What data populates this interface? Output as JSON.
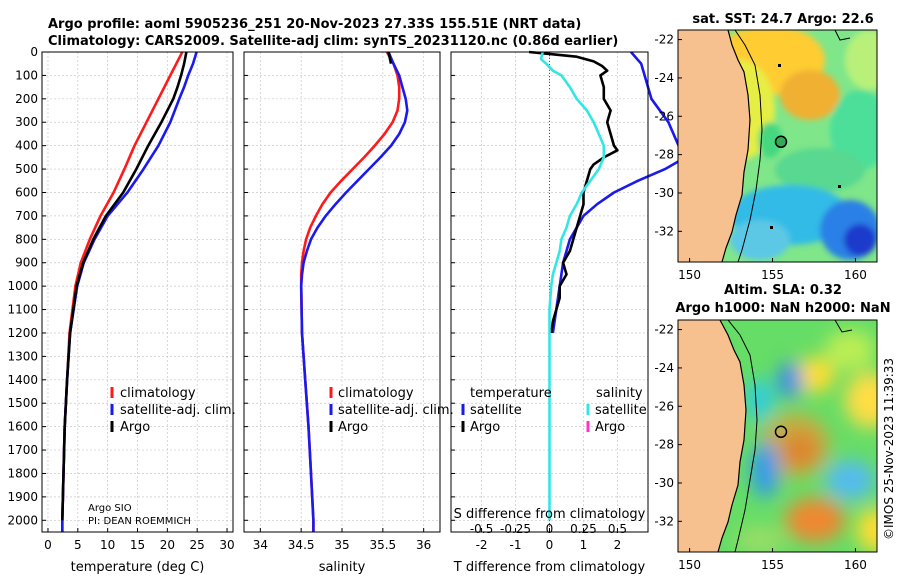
{
  "header": {
    "title_line1": "Argo profile: aoml 5905236_251 20-Nov-2023 27.33S 155.51E (NRT data)",
    "title_line2": "Climatology: CARS2009. Satellite-adj clim: synTS_20231120.nc (0.86d earlier)"
  },
  "colors": {
    "climatology": "#ff1a1a",
    "satellite": "#1a1aee",
    "argo": "#000000",
    "sat_salinity": "#33e6e6",
    "argo_salinity": "#ff33cc",
    "land": "#f7c08f"
  },
  "credits": {
    "line1": "Argo SIO",
    "line2": "PI: DEAN ROEMMICH",
    "timestamp": "©IMOS 25-Nov-2023 11:39:33"
  },
  "chart_data": [
    {
      "id": "temperature",
      "type": "line",
      "xlabel": "temperature (deg C)",
      "xlim": [
        -1,
        31
      ],
      "xticks": [
        0,
        5,
        10,
        15,
        20,
        25,
        30
      ],
      "ylim": [
        2050,
        0
      ],
      "yticks": [
        0,
        100,
        200,
        300,
        400,
        500,
        600,
        700,
        800,
        900,
        1000,
        1100,
        1200,
        1300,
        1400,
        1500,
        1600,
        1700,
        1800,
        1900,
        2000
      ],
      "legend": [
        "climatology",
        "satellite-adj. clim.",
        "Argo"
      ],
      "series": [
        {
          "name": "climatology",
          "color_key": "climatology",
          "depth": [
            0,
            50,
            100,
            150,
            200,
            300,
            400,
            500,
            600,
            700,
            800,
            900,
            1000,
            1200,
            1400,
            1600,
            1800,
            2000,
            2050
          ],
          "values": [
            22.5,
            21.5,
            20.5,
            19.5,
            18.5,
            16.5,
            14.5,
            12.8,
            11.0,
            8.8,
            7.0,
            5.5,
            4.6,
            3.6,
            3.2,
            2.8,
            2.6,
            2.4,
            2.4
          ]
        },
        {
          "name": "satellite-adj. clim.",
          "color_key": "satellite",
          "depth": [
            0,
            50,
            100,
            150,
            200,
            300,
            400,
            500,
            600,
            700,
            800,
            900,
            1000,
            1200,
            1400,
            1600,
            1800,
            2000,
            2050
          ],
          "values": [
            24.9,
            24.3,
            23.5,
            22.8,
            22.0,
            20.5,
            18.5,
            16.0,
            13.3,
            10.0,
            7.8,
            6.0,
            4.9,
            3.7,
            3.2,
            2.8,
            2.6,
            2.4,
            2.4
          ]
        },
        {
          "name": "Argo",
          "color_key": "argo",
          "depth": [
            0,
            50,
            100,
            150,
            200,
            300,
            400,
            500,
            600,
            700,
            800,
            900,
            1000,
            1200,
            1400,
            1600,
            1800,
            2000
          ],
          "values": [
            23.2,
            22.8,
            22.3,
            21.7,
            21.0,
            19.0,
            16.8,
            14.8,
            12.6,
            9.7,
            7.6,
            5.9,
            4.8,
            3.7,
            3.2,
            2.8,
            2.6,
            2.4
          ]
        }
      ]
    },
    {
      "id": "salinity",
      "type": "line",
      "xlabel": "salinity",
      "xlim": [
        33.8,
        36.2
      ],
      "xticks": [
        34,
        34.5,
        35,
        35.5,
        36
      ],
      "ylim": [
        2050,
        0
      ],
      "legend": [
        "climatology",
        "satellite-adj. clim.",
        "Argo"
      ],
      "series": [
        {
          "name": "climatology",
          "color_key": "climatology",
          "depth": [
            0,
            50,
            100,
            150,
            200,
            250,
            300,
            350,
            400,
            450,
            500,
            550,
            600,
            650,
            700,
            750,
            800,
            850,
            900,
            950,
            1000,
            1200,
            1400,
            1600,
            1800,
            2000,
            2050
          ],
          "values": [
            35.55,
            35.63,
            35.68,
            35.7,
            35.7,
            35.68,
            35.62,
            35.52,
            35.4,
            35.27,
            35.13,
            34.99,
            34.86,
            34.76,
            34.68,
            34.61,
            34.56,
            34.53,
            34.51,
            34.5,
            34.5,
            34.51,
            34.55,
            34.59,
            34.62,
            34.65,
            34.65
          ]
        },
        {
          "name": "satellite-adj. clim.",
          "color_key": "satellite",
          "depth": [
            0,
            50,
            100,
            150,
            200,
            250,
            300,
            350,
            400,
            450,
            500,
            550,
            600,
            650,
            700,
            750,
            800,
            850,
            900,
            950,
            1000,
            1200,
            1400,
            1600,
            1800,
            2000,
            2050
          ],
          "values": [
            35.57,
            35.63,
            35.7,
            35.74,
            35.78,
            35.8,
            35.77,
            35.7,
            35.6,
            35.47,
            35.33,
            35.19,
            35.05,
            34.92,
            34.8,
            34.7,
            34.62,
            34.57,
            34.53,
            34.51,
            34.5,
            34.51,
            34.55,
            34.59,
            34.62,
            34.65,
            34.65
          ]
        },
        {
          "name": "Argo",
          "color_key": "argo",
          "depth": [
            0,
            50
          ],
          "values": [
            35.57,
            35.6
          ]
        }
      ]
    },
    {
      "id": "difference",
      "type": "line",
      "xlabel": "T difference from climatology",
      "top_axis_label": "S difference from climatology",
      "xlim": [
        -2.9,
        2.9
      ],
      "xticks": [
        -2,
        -1,
        0,
        1,
        2
      ],
      "top_ticks": [
        "-0.5",
        "-0.25",
        "0",
        "0.25",
        "0.5"
      ],
      "top_tick_values": [
        -2,
        -1,
        0,
        1,
        2
      ],
      "ylim": [
        2050,
        0
      ],
      "legend_temperature": {
        "title": "temperature",
        "items": [
          "satellite",
          "Argo"
        ]
      },
      "legend_salinity": {
        "title": "salinity",
        "items": [
          "satellite",
          "Argo"
        ]
      },
      "series": [
        {
          "name": "temperature satellite",
          "color_key": "satellite",
          "depth": [
            0,
            50,
            100,
            150,
            200,
            300,
            400,
            450,
            500,
            550,
            600,
            650,
            700,
            800,
            900,
            1000,
            1100,
            1200
          ],
          "values": [
            2.4,
            2.7,
            2.8,
            2.9,
            3.0,
            3.5,
            3.8,
            4.0,
            3.4,
            2.6,
            1.9,
            1.4,
            1.0,
            0.6,
            0.4,
            0.3,
            0.2,
            0.1
          ]
        },
        {
          "name": "temperature Argo",
          "color_key": "argo",
          "depth": [
            0,
            10,
            20,
            40,
            60,
            80,
            100,
            150,
            200,
            250,
            300,
            350,
            400,
            420,
            450,
            480,
            500,
            550,
            600,
            650,
            700,
            750,
            800,
            850,
            900,
            950,
            1000,
            1050,
            1100,
            1150,
            1200
          ],
          "values": [
            -0.6,
            0.1,
            0.8,
            1.3,
            1.55,
            1.7,
            1.5,
            1.6,
            1.6,
            1.8,
            1.7,
            1.8,
            1.9,
            2.0,
            1.6,
            1.3,
            1.2,
            1.1,
            1.0,
            1.0,
            0.9,
            0.8,
            0.7,
            0.6,
            0.4,
            0.5,
            0.3,
            0.3,
            0.2,
            0.1,
            0.05
          ]
        },
        {
          "name": "salinity satellite",
          "color_key": "sat_salinity",
          "depth": [
            0,
            30,
            50,
            80,
            100,
            150,
            200,
            250,
            300,
            350,
            400,
            450,
            500,
            550,
            600,
            650,
            700,
            750,
            800,
            850,
            900,
            950,
            1000,
            1100,
            1200,
            1400,
            1600,
            1800,
            2000
          ],
          "values": [
            -0.2,
            -0.25,
            -0.1,
            0.1,
            0.35,
            0.6,
            0.8,
            1.1,
            1.3,
            1.45,
            1.6,
            1.6,
            1.45,
            1.2,
            0.95,
            0.8,
            0.6,
            0.5,
            0.35,
            0.3,
            0.2,
            0.1,
            0.05,
            0.0,
            0.0,
            0.0,
            0.0,
            0.0,
            0.0
          ]
        },
        {
          "name": "salinity Argo",
          "color_key": "argo_salinity",
          "depth": [],
          "values": []
        }
      ]
    },
    {
      "id": "sst_map",
      "type": "heatmap",
      "title": "sat. SST: 24.7 Argo: 22.6",
      "xticks": [
        150,
        155,
        160
      ],
      "yticks": [
        -22,
        -24,
        -26,
        -28,
        -30,
        -32
      ],
      "xlim": [
        149.3,
        161.3
      ],
      "ylim": [
        -33.6,
        -21.5
      ],
      "float_position": [
        155.51,
        -27.33
      ]
    },
    {
      "id": "sla_map",
      "type": "heatmap",
      "title_line1": "Altim. SLA: 0.32",
      "title_line2": "Argo h1000: NaN h2000: NaN",
      "xticks": [
        150,
        155,
        160
      ],
      "yticks": [
        -22,
        -24,
        -26,
        -28,
        -30,
        -32
      ],
      "xlim": [
        149.3,
        161.3
      ],
      "ylim": [
        -33.6,
        -21.5
      ],
      "float_position": [
        155.51,
        -27.33
      ]
    }
  ]
}
